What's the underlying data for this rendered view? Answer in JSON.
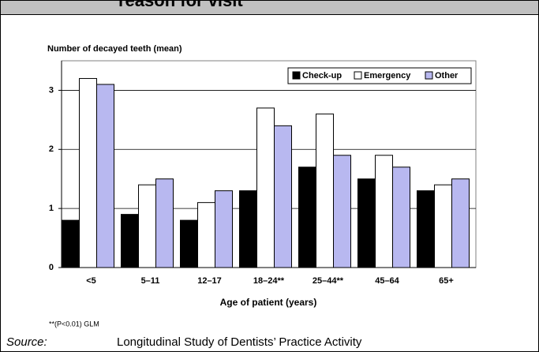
{
  "header": "reason for visit",
  "chart_data": {
    "type": "bar",
    "y_label": "Number of decayed teeth (mean)",
    "x_label": "Age of patient (years)",
    "categories": [
      "<5",
      "5–11",
      "12–17",
      "18–24**",
      "25–44**",
      "45–64",
      "65+"
    ],
    "series": [
      {
        "name": "Check-up",
        "color": "#000000",
        "values": [
          0.8,
          0.9,
          0.8,
          1.3,
          1.7,
          1.5,
          1.3
        ]
      },
      {
        "name": "Emergency",
        "color": "#ffffff",
        "values": [
          3.2,
          1.4,
          1.1,
          2.7,
          2.6,
          1.9,
          1.4
        ]
      },
      {
        "name": "Other",
        "color": "#b8b8f0",
        "values": [
          3.1,
          1.5,
          1.3,
          2.4,
          1.9,
          1.7,
          1.5
        ]
      }
    ],
    "ylim": [
      0,
      3.5
    ],
    "yticks": [
      0,
      1,
      2,
      3
    ],
    "grid": true,
    "legend": "top-right"
  },
  "note": "**(P<0.01) GLM",
  "source": {
    "label": "Source:",
    "text": "Longitudinal Study of Dentists’ Practice Activity"
  }
}
